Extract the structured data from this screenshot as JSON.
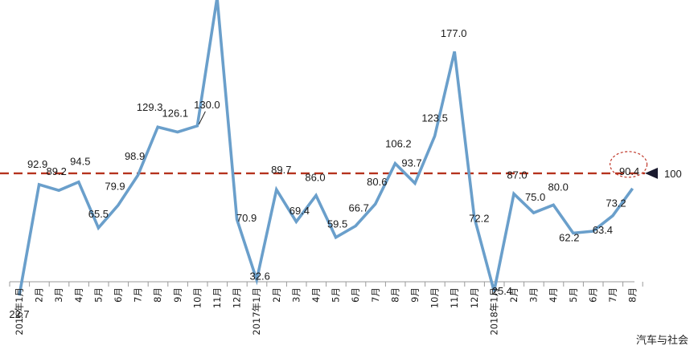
{
  "chart_data": {
    "type": "line",
    "categories": [
      "2016年1月",
      "2月",
      "3月",
      "4月",
      "5月",
      "6月",
      "7月",
      "8月",
      "9月",
      "10月",
      "11月",
      "12月",
      "2017年1月",
      "2月",
      "3月",
      "4月",
      "5月",
      "6月",
      "7月",
      "8月",
      "9月",
      "10月",
      "11月",
      "12月",
      "2018年1月",
      "2月",
      "3月",
      "4月",
      "5月",
      "6月",
      "7月",
      "8月"
    ],
    "series": [
      {
        "values": [
          22.7,
          92.9,
          89.2,
          94.5,
          65.5,
          79.9,
          98.9,
          129.3,
          126.1,
          130.0,
          211.1,
          70.9,
          32.6,
          89.7,
          69.4,
          86.0,
          59.5,
          66.7,
          80.6,
          106.2,
          93.7,
          123.5,
          177.0,
          72.2,
          25.4,
          87.0,
          75.0,
          80.0,
          62.2,
          63.4,
          73.2,
          90.4
        ],
        "color": "#6a9fcb"
      }
    ],
    "reference_line": {
      "value": 100,
      "label": "100",
      "color": "#b5331f",
      "style": "dashed"
    },
    "highlight": {
      "category": "8月",
      "value": 90.4,
      "style": "dashed-ellipse",
      "color": "#c0392b"
    },
    "ylim": [
      0,
      230
    ],
    "grid": false
  },
  "watermark": "汽车与社会"
}
